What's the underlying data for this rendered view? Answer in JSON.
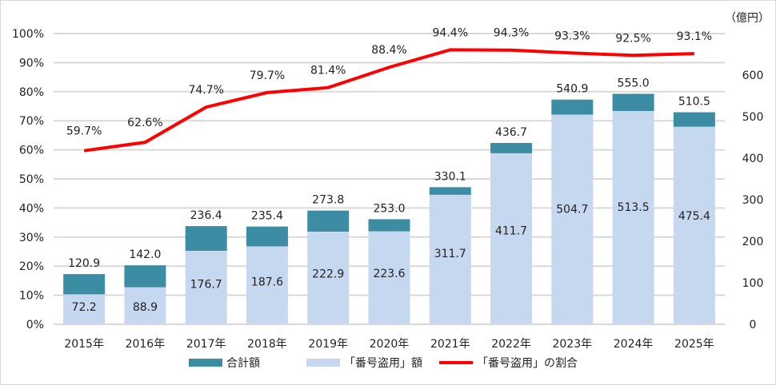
{
  "chart_data": {
    "type": "bar",
    "categories": [
      "2015年",
      "2016年",
      "2017年",
      "2018年",
      "2019年",
      "2020年",
      "2021年",
      "2022年",
      "2023年",
      "2024年",
      "2025年"
    ],
    "series": [
      {
        "name": "合計額",
        "type": "bar",
        "axis": "right",
        "color": "#3C8CA3",
        "values": [
          120.9,
          142.0,
          236.4,
          235.4,
          273.8,
          253.0,
          330.1,
          436.7,
          540.9,
          555.0,
          510.5
        ],
        "labels": [
          "120.9",
          "142.0",
          "236.4",
          "235.4",
          "273.8",
          "253.0",
          "330.1",
          "436.7",
          "540.9",
          "555.0",
          "510.5"
        ]
      },
      {
        "name": "「番号盗用」額",
        "type": "bar",
        "axis": "right",
        "color": "#C5D8EF",
        "values": [
          72.2,
          88.9,
          176.7,
          187.6,
          222.9,
          223.6,
          311.7,
          411.7,
          504.7,
          513.5,
          475.4
        ],
        "labels": [
          "72.2",
          "88.9",
          "176.7",
          "187.6",
          "222.9",
          "223.6",
          "311.7",
          "411.7",
          "504.7",
          "513.5",
          "475.4"
        ]
      },
      {
        "name": "「番号盗用」の割合",
        "type": "line",
        "axis": "left",
        "color": "#FF0000",
        "values": [
          59.7,
          62.6,
          74.7,
          79.7,
          81.4,
          88.4,
          94.4,
          94.3,
          93.3,
          92.5,
          93.1
        ],
        "labels": [
          "59.7%",
          "62.6%",
          "74.7%",
          "79.7%",
          "81.4%",
          "88.4%",
          "94.4%",
          "94.3%",
          "93.3%",
          "92.5%",
          "93.1%"
        ]
      }
    ],
    "left_axis": {
      "ylim": [
        0,
        100
      ],
      "ticks": [
        "0%",
        "10%",
        "20%",
        "30%",
        "40%",
        "50%",
        "60%",
        "70%",
        "80%",
        "90%",
        "100%"
      ]
    },
    "right_axis": {
      "ylim": [
        0,
        700
      ],
      "ticks": [
        "0",
        "100",
        "200",
        "300",
        "400",
        "500",
        "600"
      ],
      "unit": "（億円）"
    },
    "grid": true,
    "legend": "bottom"
  }
}
